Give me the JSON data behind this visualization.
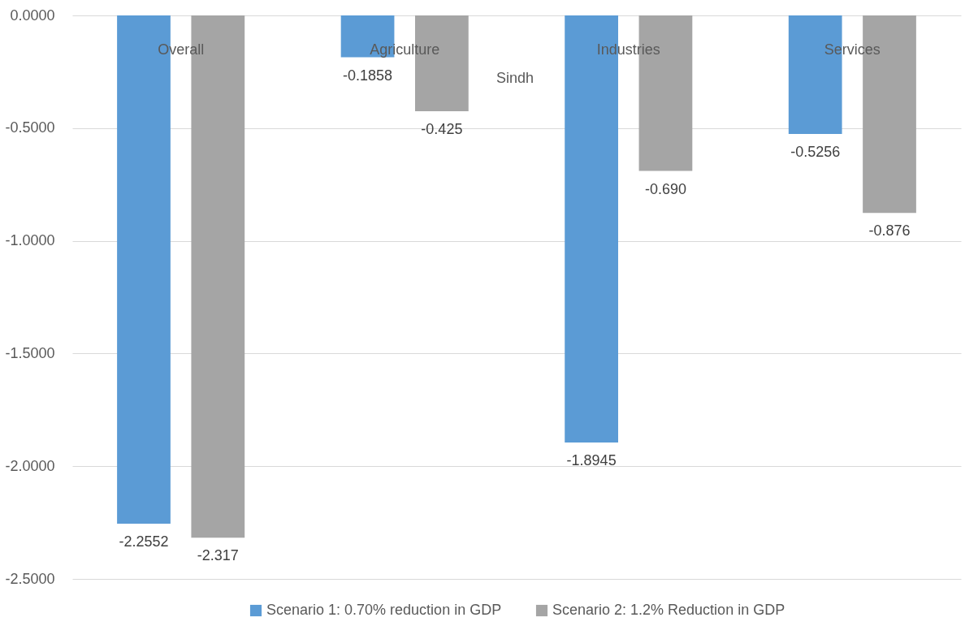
{
  "chart_data": {
    "type": "bar",
    "annotations": [
      "Sindh"
    ],
    "categories": [
      "Overall",
      "Agriculture",
      "Industries",
      "Services"
    ],
    "series": [
      {
        "name": "Scenario 1: 0.70% reduction in GDP",
        "color": "#5b9bd5",
        "values": [
          -2.2552,
          -0.1858,
          -1.8945,
          -0.5256
        ],
        "value_labels": [
          "-2.2552",
          "-0.1858",
          "-1.8945",
          "-0.5256"
        ]
      },
      {
        "name": "Scenario 2: 1.2% Reduction in GDP",
        "color": "#a5a5a5",
        "values": [
          -2.317,
          -0.425,
          -0.69,
          -0.876
        ],
        "value_labels": [
          "-2.317",
          "-0.425",
          "-0.690",
          "-0.876"
        ]
      }
    ],
    "ylim": [
      -2.5,
      0
    ],
    "yticks": [
      {
        "value": -2.5,
        "label": "-2.5000"
      },
      {
        "value": -2,
        "label": "-2.0000"
      },
      {
        "value": -1.5,
        "label": "-1.5000"
      },
      {
        "value": -1,
        "label": "-1.0000"
      },
      {
        "value": -0.5,
        "label": "-0.5000"
      },
      {
        "value": 0,
        "label": "0.0000"
      }
    ],
    "grid": "y",
    "legend": "bottom"
  }
}
